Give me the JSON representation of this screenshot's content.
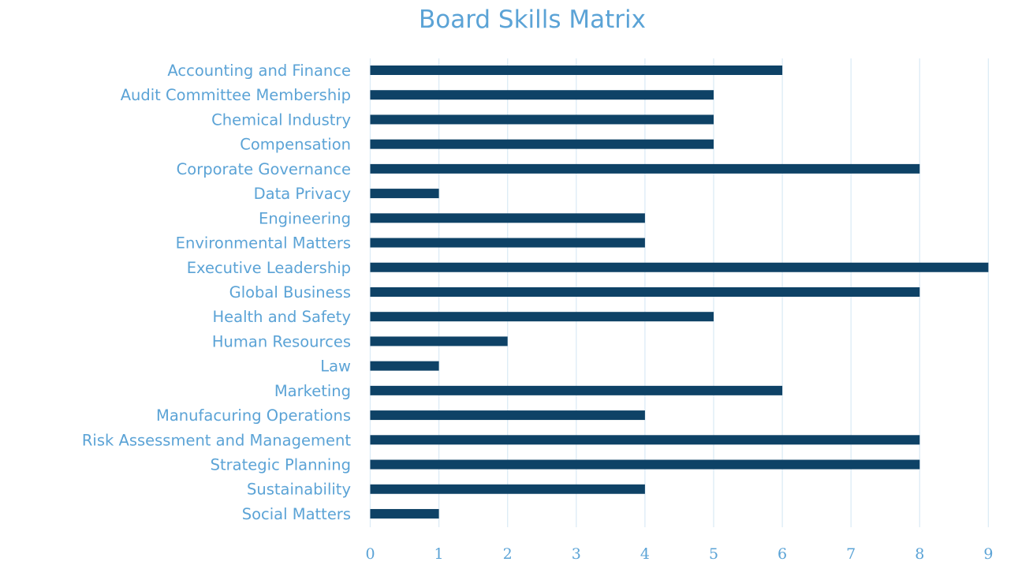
{
  "chart_data": {
    "type": "bar",
    "orientation": "horizontal",
    "title": "Board Skills Matrix",
    "xlabel": "",
    "ylabel": "",
    "categories": [
      "Accounting and Finance",
      "Audit Committee Membership",
      "Chemical Industry",
      "Compensation",
      "Corporate Governance",
      "Data Privacy",
      "Engineering",
      "Environmental Matters",
      "Executive Leadership",
      "Global Business",
      "Health and Safety",
      "Human Resources",
      "Law",
      "Marketing",
      "Manufacuring Operations",
      "Risk Assessment and Management",
      "Strategic Planning",
      "Sustainability",
      "Social Matters"
    ],
    "values": [
      6,
      5,
      5,
      5,
      8,
      1,
      4,
      4,
      9,
      8,
      5,
      2,
      1,
      6,
      4,
      8,
      8,
      4,
      1
    ],
    "xlim": [
      0,
      9
    ],
    "x_ticks": [
      "0",
      "1",
      "2",
      "3",
      "4",
      "5",
      "6",
      "7",
      "8",
      "9"
    ],
    "grid": "vertical",
    "legend": "none",
    "colors": {
      "bar": "#0e4266",
      "text": "#5ba3d6",
      "grid": "#dcebf6"
    }
  }
}
